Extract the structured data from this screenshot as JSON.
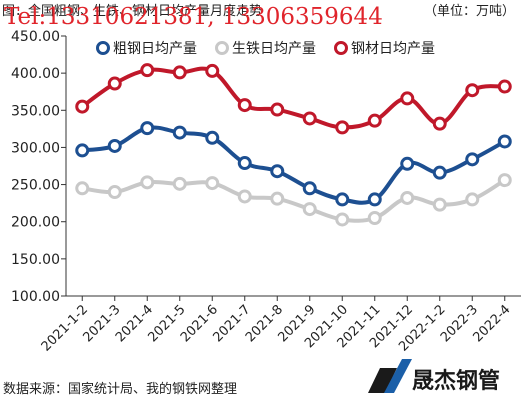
{
  "header": {
    "title": "图：全国粗钢、生铁、钢材日均产量月度走势",
    "unit": "（单位：万吨）",
    "watermark": "Tel:13310621381, 13306359644"
  },
  "footer": {
    "source": "数据来源：国家统计局、我的钢铁网整理",
    "logo_text": "晟杰钢管"
  },
  "colors": {
    "crude_steel": "#1d4f91",
    "pig_iron": "#c8c8c8",
    "steel_products": "#c0182a",
    "axis": "#333333",
    "watermark": "#e0242b"
  },
  "chart_data": {
    "type": "line",
    "title": "图：全国粗钢、生铁、钢材日均产量月度走势",
    "ylabel": "",
    "xlabel": "",
    "ylim": [
      100,
      450
    ],
    "yticks": [
      "100.00",
      "150.00",
      "200.00",
      "250.00",
      "300.00",
      "350.00",
      "400.00",
      "450.00"
    ],
    "categories": [
      "2021-1-2",
      "2021-3",
      "2021-4",
      "2021-5",
      "2021-6",
      "2021-7",
      "2021-8",
      "2021-9",
      "2021-10",
      "2021-11",
      "2021-12",
      "2022-1-2",
      "2022-3",
      "2022-4"
    ],
    "legend_position": "top",
    "grid": false,
    "series": [
      {
        "name": "粗钢日均产量",
        "color": "#1d4f91",
        "values": [
          296,
          302,
          326,
          320,
          313,
          279,
          268,
          245,
          230,
          230,
          278,
          266,
          284,
          308
        ]
      },
      {
        "name": "生铁日均产量",
        "color": "#c8c8c8",
        "values": [
          245,
          240,
          253,
          251,
          252,
          234,
          231,
          217,
          203,
          205,
          232,
          223,
          230,
          256
        ]
      },
      {
        "name": "钢材日均产量",
        "color": "#c0182a",
        "values": [
          355,
          386,
          404,
          401,
          403,
          357,
          351,
          339,
          327,
          336,
          366,
          332,
          377,
          382
        ]
      }
    ]
  }
}
